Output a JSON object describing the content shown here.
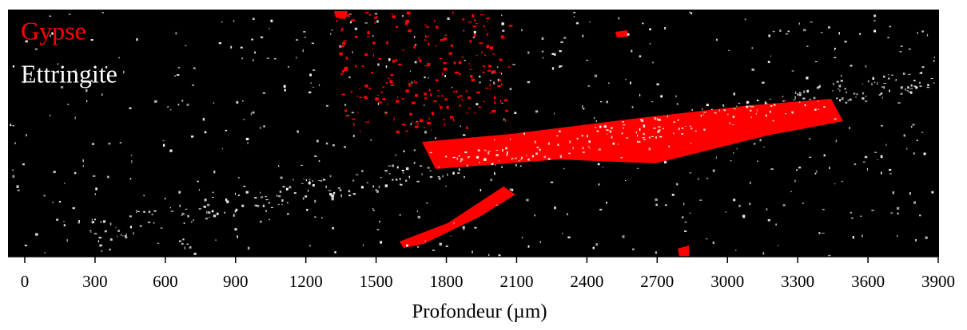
{
  "chart_data": {
    "type": "image",
    "legend": [
      {
        "name": "Gypse",
        "color": "#ff0000"
      },
      {
        "name": "Ettringite",
        "color": "#ffffff"
      }
    ],
    "xlabel": "Profondeur (µm)",
    "xlim": [
      0,
      3900
    ],
    "xticks": [
      0,
      300,
      600,
      900,
      1200,
      1500,
      1800,
      2100,
      2400,
      2700,
      3000,
      3300,
      3600,
      3900
    ]
  }
}
